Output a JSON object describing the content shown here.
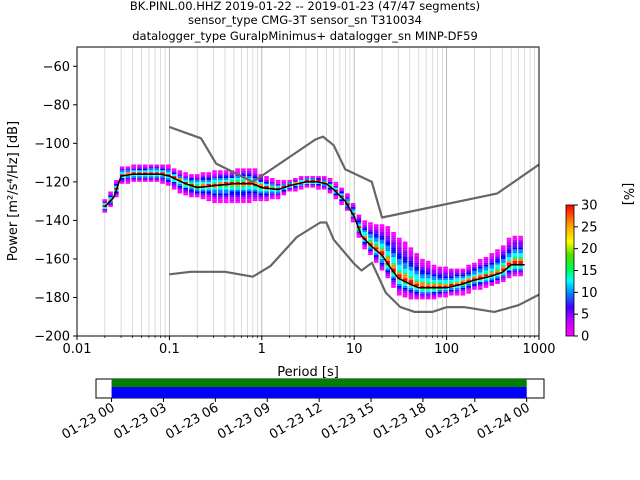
{
  "title_lines": [
    "BK.PINL.00.HHZ   2019-01-22 -- 2019-01-23  (47/47 segments)",
    "sensor_type CMG-3T sensor_sn T310034",
    "datalogger_type GuralpMinimus+ datalogger_sn MINP-DF59"
  ],
  "chart_data": {
    "type": "heatmap",
    "xlabel": "Period [s]",
    "ylabel": "Power [m²/s⁴/Hz] [dB]",
    "xscale": "log",
    "xlim": [
      0.01,
      1000
    ],
    "ylim": [
      -200,
      -50
    ],
    "x_ticks": [
      0.01,
      0.1,
      1,
      10,
      100,
      1000
    ],
    "x_tick_labels": [
      "0.01",
      "0.1",
      "1",
      "10",
      "100",
      "1000"
    ],
    "y_ticks": [
      -200,
      -180,
      -160,
      -140,
      -120,
      -100,
      -80,
      -60
    ],
    "y_tick_labels": [
      "−200",
      "−180",
      "−160",
      "−140",
      "−120",
      "−100",
      "−80",
      "−60"
    ],
    "grid": "vertical log minor lines",
    "colorbar": {
      "label": "[%]",
      "range": [
        0,
        30
      ],
      "ticks": [
        0,
        5,
        10,
        15,
        20,
        25,
        30
      ],
      "tick_labels": [
        "0",
        "5",
        "10",
        "15",
        "20",
        "25",
        "30"
      ]
    },
    "noise_model_high": {
      "period": [
        0.1,
        0.22,
        0.32,
        0.8,
        3.8,
        4.6,
        6.0,
        8.0,
        15.5,
        20,
        354.8,
        1000
      ],
      "power": [
        -91.5,
        -97.4,
        -110.5,
        -120.0,
        -98.0,
        -96.5,
        -101.0,
        -113.5,
        -120.0,
        -138.5,
        -126.0,
        -111.0
      ]
    },
    "noise_model_low": {
      "period": [
        0.1,
        0.17,
        0.4,
        0.8,
        1.24,
        2.4,
        4.3,
        5.0,
        6.0,
        10.0,
        12.0,
        15.6,
        21.9,
        31.6,
        45.0,
        70.0,
        101.0,
        154.0,
        328.0,
        600.0,
        1000
      ],
      "power": [
        -168.0,
        -166.7,
        -166.7,
        -169.2,
        -163.7,
        -148.6,
        -141.1,
        -141.1,
        -150.0,
        -162.5,
        -166.0,
        -162.0,
        -177.5,
        -185.0,
        -187.5,
        -187.5,
        -185.0,
        -185.0,
        -187.5,
        -184.0,
        -178.5
      ]
    },
    "median_psd": {
      "period": [
        0.02,
        0.025,
        0.03,
        0.04,
        0.06,
        0.08,
        0.1,
        0.15,
        0.2,
        0.3,
        0.5,
        0.8,
        1.0,
        1.5,
        2.0,
        3.0,
        4.0,
        5.0,
        6.0,
        8.0,
        10,
        12,
        15,
        20,
        25,
        30,
        40,
        50,
        70,
        100,
        150,
        200,
        300,
        400,
        500,
        700
      ],
      "power": [
        -133,
        -128,
        -117,
        -116,
        -116,
        -116,
        -117,
        -121,
        -123,
        -122,
        -121,
        -121,
        -123,
        -124,
        -122,
        -120,
        -120,
        -121,
        -124,
        -130,
        -138,
        -148,
        -153,
        -158,
        -165,
        -170,
        -173,
        -175,
        -175,
        -175,
        -173,
        -171,
        -169,
        -167,
        -163,
        -163
      ]
    },
    "psd_spread": {
      "period": [
        0.02,
        0.025,
        0.03,
        0.04,
        0.06,
        0.08,
        0.1,
        0.15,
        0.2,
        0.3,
        0.5,
        0.8,
        1.0,
        1.5,
        2.0,
        3.0,
        4.0,
        5.0,
        6.0,
        8.0,
        10,
        12,
        15,
        20,
        25,
        30,
        40,
        50,
        70,
        100,
        150,
        200,
        300,
        400,
        500,
        700
      ],
      "upper": [
        -130,
        -125,
        -113,
        -113,
        -112,
        -112,
        -113,
        -117,
        -117,
        -116,
        -115,
        -114,
        -118,
        -121,
        -120,
        -118,
        -118,
        -119,
        -121,
        -126,
        -133,
        -141,
        -143,
        -143,
        -146,
        -150,
        -155,
        -160,
        -164,
        -166,
        -166,
        -163,
        -159,
        -155,
        -149,
        -149
      ],
      "lower": [
        -136,
        -131,
        -121,
        -120,
        -120,
        -120,
        -122,
        -127,
        -128,
        -130,
        -131,
        -130,
        -130,
        -128,
        -125,
        -123,
        -123,
        -124,
        -127,
        -133,
        -141,
        -152,
        -158,
        -166,
        -172,
        -178,
        -180,
        -181,
        -181,
        -179,
        -178,
        -176,
        -174,
        -172,
        -169,
        -169
      ]
    },
    "timeline": {
      "tick_labels": [
        "01-23 00",
        "01-23 03",
        "01-23 06",
        "01-23 09",
        "01-23 12",
        "01-23 15",
        "01-23 18",
        "01-23 21",
        "01-24 00"
      ],
      "coverage_start_hour": 0,
      "coverage_end_hour": 24,
      "span_hours": [
        -0.9,
        25.0
      ],
      "colors": [
        "#008000",
        "#0000ff"
      ]
    },
    "colors": {
      "noise_model": "#666666",
      "median": "#000000"
    }
  }
}
